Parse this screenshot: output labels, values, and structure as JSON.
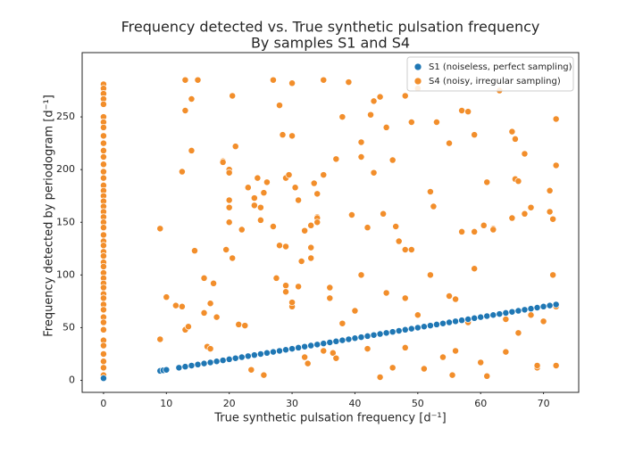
{
  "chart_data": {
    "type": "scatter",
    "title": "Frequency detected vs. True synthetic pulsation frequency",
    "subtitle": "By samples S1 and S4",
    "x_label": "True synthetic pulsation frequency [d⁻¹]",
    "y_label": "Frequency detected by periodogram [d⁻¹]",
    "xlim": [
      -3.4,
      75.6
    ],
    "ylim": [
      -11.4,
      311
    ],
    "xticks": [
      0,
      10,
      20,
      30,
      40,
      50,
      60,
      70
    ],
    "yticks": [
      0,
      50,
      100,
      150,
      200,
      250
    ],
    "grid": false,
    "legend": "upper right",
    "series": [
      {
        "name": "S1 (noiseless, perfect sampling)",
        "color": "#1f77b4",
        "x": [
          0,
          9,
          9.5,
          10,
          12,
          13,
          14,
          15,
          16,
          17,
          18,
          19,
          20,
          21,
          22,
          23,
          24,
          25,
          26,
          27,
          28,
          29,
          30,
          31,
          32,
          33,
          34,
          35,
          36,
          37,
          38,
          39,
          40,
          41,
          42,
          43,
          44,
          45,
          46,
          47,
          48,
          49,
          50,
          51,
          52,
          53,
          54,
          55,
          56,
          57,
          58,
          59,
          60,
          61,
          62,
          63,
          64,
          65,
          66,
          67,
          68,
          69,
          70,
          71,
          72
        ],
        "values": [
          2,
          9,
          9.5,
          10,
          12,
          13,
          14,
          15,
          16,
          17,
          18,
          19,
          20,
          21,
          22,
          23,
          24,
          25,
          26,
          27,
          28,
          29,
          30,
          31,
          32,
          33,
          34,
          35,
          36,
          37,
          38,
          39,
          40,
          41,
          42,
          43,
          44,
          45,
          46,
          47,
          48,
          49,
          50,
          51,
          52,
          53,
          54,
          55,
          56,
          57,
          58,
          59,
          60,
          61,
          62,
          63,
          64,
          65,
          66,
          67,
          68,
          69,
          70,
          71,
          72
        ]
      },
      {
        "name": "S4 (noisy, irregular sampling)",
        "color": "#f28e2b",
        "x": [
          0,
          0,
          0,
          0,
          0,
          0,
          0,
          0,
          0,
          0,
          0,
          0,
          0,
          0,
          0,
          0,
          0,
          0,
          0,
          0,
          0,
          0,
          0,
          0,
          0,
          0,
          0,
          0,
          0,
          0,
          0,
          0,
          0,
          0,
          0,
          0,
          0,
          0,
          0,
          0,
          0,
          0,
          0,
          0,
          0,
          0,
          0,
          0,
          9,
          9,
          10,
          11.5,
          12.5,
          12.5,
          13,
          13,
          13,
          13.5,
          14,
          14,
          14.5,
          15,
          16,
          16,
          16.5,
          17,
          17,
          17.5,
          18,
          19,
          19,
          19.5,
          20,
          20,
          20.5,
          20,
          20,
          20,
          20.5,
          21,
          21.5,
          22,
          22.5,
          23,
          23.5,
          24,
          24,
          24.5,
          25,
          25,
          25.5,
          25.5,
          26,
          26,
          27,
          27,
          27.5,
          28,
          28,
          28.5,
          29,
          29,
          29,
          29,
          29.5,
          30,
          30,
          30,
          30,
          30.5,
          31,
          31,
          31.5,
          32,
          32,
          32.5,
          33,
          33,
          33,
          33.5,
          34,
          34,
          34,
          34,
          35,
          35,
          35,
          36,
          36,
          36.5,
          37,
          37,
          38,
          38,
          39,
          39,
          39.5,
          40,
          41,
          41,
          41,
          42,
          42,
          42.5,
          43,
          43,
          44,
          44,
          44.5,
          45,
          45,
          46,
          46,
          46.5,
          47,
          48,
          48,
          48,
          48,
          49,
          49,
          50,
          50,
          51,
          52,
          52,
          52.5,
          53,
          54,
          55,
          55,
          55.5,
          56,
          56,
          57,
          57,
          58,
          58,
          59,
          59,
          59,
          60,
          60.5,
          61,
          61,
          62,
          62,
          63,
          64,
          64,
          65,
          65,
          65.5,
          65.5,
          66,
          66,
          67,
          67,
          68,
          68,
          69,
          69,
          70,
          71,
          71,
          71.5,
          71.5,
          72,
          72,
          72,
          72
        ],
        "values": [
          281,
          277,
          272,
          267,
          262,
          250,
          245,
          240,
          232,
          225,
          218,
          212,
          205,
          198,
          192,
          185,
          180,
          175,
          170,
          165,
          160,
          155,
          150,
          145,
          138,
          132,
          128,
          122,
          118,
          112,
          108,
          102,
          97,
          92,
          88,
          82,
          78,
          72,
          67,
          60,
          55,
          48,
          38,
          33,
          25,
          18,
          12,
          5,
          144,
          39,
          79,
          71,
          70,
          198,
          285,
          256,
          48,
          51,
          267,
          218,
          123,
          285,
          97,
          64,
          32,
          30,
          73,
          92,
          60,
          208,
          207,
          124,
          200,
          197,
          270,
          150,
          164,
          171,
          116,
          222,
          53,
          143,
          52,
          183,
          10,
          173,
          166,
          192,
          164,
          152,
          178,
          5,
          26,
          188,
          285,
          146,
          97,
          261,
          128,
          233,
          90,
          84,
          127,
          192,
          195,
          282,
          232,
          70,
          74,
          183,
          89,
          171,
          113,
          142,
          22,
          16,
          116,
          126,
          147,
          187,
          155,
          177,
          154,
          150,
          285,
          195,
          28,
          88,
          78,
          26,
          210,
          21,
          250,
          54,
          283,
          283,
          157,
          66,
          226,
          100,
          212,
          145,
          30,
          252,
          265,
          197,
          3,
          269,
          158,
          240,
          83,
          209,
          12,
          146,
          132,
          124,
          270,
          78,
          31,
          245,
          124,
          277,
          62,
          11,
          179,
          100,
          165,
          245,
          22,
          80,
          225,
          5,
          77,
          28,
          256,
          141,
          255,
          55,
          106,
          233,
          141,
          17,
          147,
          188,
          4,
          144,
          143,
          275,
          27,
          58,
          236,
          154,
          229,
          191,
          189,
          45,
          215,
          158,
          164,
          62,
          12,
          14,
          56,
          180,
          160,
          100,
          153,
          248,
          204,
          14,
          70
        ]
      }
    ]
  }
}
